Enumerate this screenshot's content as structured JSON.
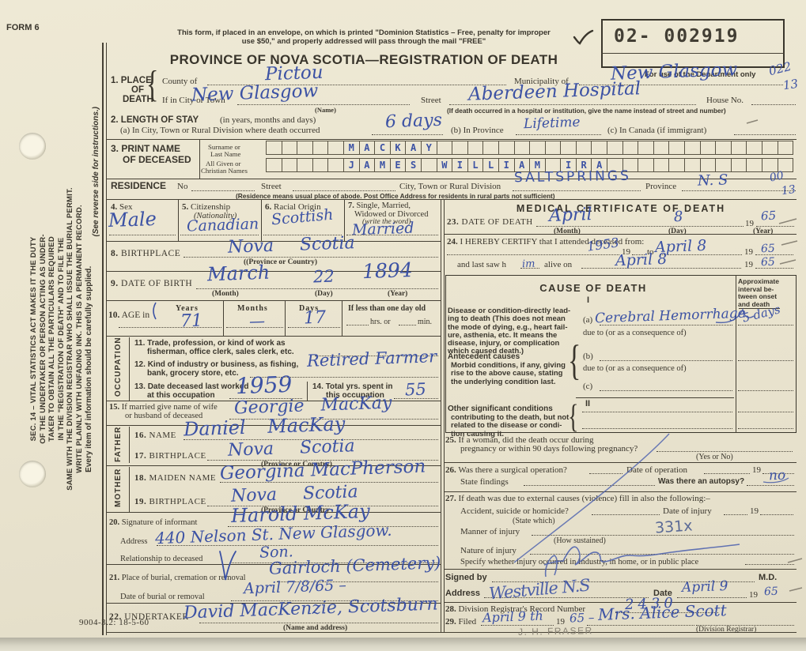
{
  "colors": {
    "ink": "#3c52a4",
    "print": "#39352c",
    "pencil": "#8b8577"
  },
  "glyphs": {
    "brace": "{",
    "check": "✓"
  },
  "chrome": {
    "form_code": "FORM 6",
    "print_code": "9004-3.2: 18-5-60"
  },
  "header": {
    "notice_line1": "This form, if placed in an envelope, on which is printed \"Dominion Statistics – Free, penalty for improper",
    "notice_line2": "use $50,\" and properly addressed will pass through the mail \"FREE\"",
    "title": "PROVINCE OF NOVA SCOTIA—REGISTRATION OF DEATH",
    "stamp_number": "02-  002919",
    "department_note": "For use of the Department only",
    "margin_code_1": "022",
    "margin_code_2": "13"
  },
  "sidebar": {
    "duty_lines": [
      "SEC. 14 – VITAL STATISTICS ACT MAKES IT THE DUTY",
      "OF THE UNDERTAKER OR PERSON ACTING AS UNDER-",
      "TAKER TO OBTAIN ALL THE PARTICULARS REQUIRED",
      "IN THE \"REGISTRATION OF DEATH\" AND TO FILE THE",
      "SAME WITH THE DIVISION REGISTRAR WHO SHALL ISSUE THE BURIAL PERMIT.",
      "WRITE PLAINLY WITH UNFADING INK. THIS IS A PERMANENT RECORD."
    ],
    "reverse_note": "(See reverse side for instructions.)",
    "supply_note": "Every item of information should be carefully supplied."
  },
  "s1": {
    "num": "1.",
    "label1": "PLACE",
    "label2": "OF",
    "label3": "DEATH",
    "county_label": "County of",
    "county": "Pictou",
    "municipality_label": "Municipality of",
    "municipality": "New Glasgow",
    "city_label": "If in City or Town",
    "city": "New Glasgow",
    "name_note": "(Name)",
    "street_label": "Street",
    "street": "Aberdeen Hospital",
    "house_label": "House No.",
    "hospital_note": "(If death occurred in a hospital or institution, give the name instead of street and number)"
  },
  "s2": {
    "num": "2.",
    "label": "LENGTH OF STAY",
    "paren": "(in years, months and days)",
    "a_label": "(a) In City, Town or Rural Division where death occurred",
    "a_value": "6 days",
    "b_label": "(b) In Province",
    "b_value": "Lifetime",
    "c_label": "(c) In Canada (if immigrant)"
  },
  "s3": {
    "num": "3.",
    "label1": "PRINT NAME",
    "label2": "OF DECEASED",
    "surname_label1": "Surname or",
    "surname_label2": "Last Name",
    "given_label1": "All Given or",
    "given_label2": "Christian Names",
    "grid": {
      "rows": [
        {
          "cells": 34,
          "start": 5,
          "letters": "MACKAY"
        },
        {
          "cells": 34,
          "start": 5,
          "letters": "JAMES WILLIAM IRA"
        }
      ]
    }
  },
  "residence": {
    "label": "RESIDENCE",
    "no_label": "No",
    "street_label": "Street",
    "city_label": "City, Town or Rural Division",
    "city_value": "SALTSPRINGS",
    "prov_label": "Province",
    "prov_value": "N. S",
    "note": "(Residence means usual place of abode. Post Office Address for residents in rural parts not sufficient)",
    "code_1": "00",
    "code_2": "13"
  },
  "s4": {
    "num": "4.",
    "label": "Sex",
    "value": "Male"
  },
  "s5": {
    "num": "5.",
    "label": "Citizenship",
    "paren": "(Nationality)",
    "value": "Canadian"
  },
  "s6": {
    "num": "6.",
    "label": "Racial Origin",
    "value": "Scottish"
  },
  "s7": {
    "num": "7.",
    "label1": "Single, Married,",
    "label2": "Widowed or Divorced",
    "paren": "(write the word)",
    "value": "Married"
  },
  "s8": {
    "num": "8.",
    "label": "BIRTHPLACE",
    "value": "Nova Scotia",
    "note": "((Province or Country)"
  },
  "s9": {
    "num": "9.",
    "label": "DATE OF BIRTH",
    "month": "March",
    "day": "22",
    "year": "1894",
    "month_note": "(Month)",
    "day_note": "(Day)",
    "year_note": "(Year)"
  },
  "s10": {
    "num": "10.",
    "label": "AGE in",
    "years_label": "Years",
    "months_label": "Months",
    "days_label": "Days",
    "years": "71",
    "months": "—",
    "days": "17",
    "less_label": "If less than one day old",
    "hrs_label": "hrs. or",
    "min_label": "min."
  },
  "occupation_label": "OCCUPATION",
  "father_label": "FATHER",
  "mother_label": "MOTHER",
  "s11": {
    "num": "11.",
    "line1": "Trade, profession, or kind of work as",
    "line2": "fisherman, office clerk, sales clerk, etc."
  },
  "s12": {
    "num": "12.",
    "line1": "Kind of industry or business, as fishing,",
    "line2": "bank, grocery store, etc.",
    "value": "Retired Farmer"
  },
  "s13": {
    "num": "13.",
    "line1": "Date deceased last worked",
    "line2": "at this occupation",
    "value": "1959"
  },
  "s14": {
    "num": "14.",
    "line1": "Total yrs. spent in",
    "line2": "this occupation",
    "value": "55"
  },
  "s15": {
    "num": "15.",
    "line1": "If married give name of wife",
    "line2": "or husband of deceased",
    "value": "Georgie MacKay"
  },
  "s16": {
    "num": "16.",
    "label": "NAME",
    "value": "Daniel MacKay"
  },
  "s17": {
    "num": "17.",
    "label": "BIRTHPLACE",
    "value": "Nova Scotia",
    "note": "(Province or Country)"
  },
  "s18": {
    "num": "18.",
    "label": "MAIDEN NAME",
    "value": "Georgina MacPherson"
  },
  "s19": {
    "num": "19.",
    "label": "BIRTHPLACE",
    "value": "Nova Scotia",
    "note": "(Province or Country"
  },
  "s20": {
    "num": "20.",
    "label": "Signature of informant",
    "value": "Harold McKay",
    "address_label": "Address",
    "address": "440 Nelson St. New Glasgow.",
    "rel_label": "Relationship to deceased",
    "rel": "Son."
  },
  "s21": {
    "num": "21.",
    "label": "Place of burial, cremation or removal",
    "value": "Gairloch (Cemetery)",
    "date_label": "Date of burial or removal",
    "date": "April 7/8/65 –"
  },
  "s22": {
    "num": "22.",
    "label": "UNDERTAKER",
    "value": "David MacKenzie, Scotsburn",
    "note": "(Name and address)"
  },
  "med": {
    "title": "MEDICAL CERTIFICATE OF DEATH"
  },
  "s23": {
    "num": "23.",
    "label": "DATE OF DEATH",
    "month": "April",
    "day": "8",
    "nineteen": "19",
    "year": "65",
    "month_note": "(Month)",
    "day_note": "(Day)",
    "year_note": "(Year)"
  },
  "s24": {
    "num": "24.",
    "label": "I HEREBY CERTIFY that I attended deceased from:",
    "from": "1953",
    "nineteen1": "19",
    "to_label": "to",
    "to_value": "April 8",
    "nineteen2": "19",
    "to_year": "65",
    "saw_label": "and last saw h",
    "saw_fill": "im",
    "alive_label": "alive on",
    "alive_value": "April 8",
    "nineteen3": "19",
    "alive_year": "65"
  },
  "cause": {
    "title": "CAUSE OF DEATH",
    "roman1": "I",
    "roman2": "II",
    "interval_lines": [
      "Approximate",
      "interval be-",
      "tween onset",
      "and death"
    ],
    "lead_lines": [
      "Disease or condition-directly lead-",
      "ing to death (This does not mean",
      "the mode of dying, e.g., heart fail-",
      "ure, asthenia, etc. It means the",
      "disease, injury, or complication",
      "which caused death.)"
    ],
    "a_label": "(a)",
    "a_value": "Cerebral Hemorrhage",
    "due1": "due to (or as a consequence of)",
    "interval_a": "5 days",
    "ante_lines": [
      "Antecedent causes",
      "Morbid conditions, if any, giving",
      "rise to the above cause, stating",
      "the underlying condition last."
    ],
    "b_label": "(b)",
    "due2": "due to (or as a consequence of)",
    "c_label": "(c)",
    "other_lines": [
      "Other significant conditions",
      "contributing to the death, but not",
      "related to the disease or condi-",
      "tion causing it."
    ]
  },
  "s25": {
    "num": "25.",
    "line1": "If a woman, did the death occur during",
    "line2": "pregnancy or within 90 days following pregnancy?",
    "note": "(Yes or No)"
  },
  "s26": {
    "num": "26.",
    "label": "Was there a surgical operation?",
    "date_label": "Date of operation",
    "nineteen": "19",
    "findings_label": "State findings",
    "autopsy_label": "Was there an autopsy?",
    "autopsy": "no"
  },
  "s27": {
    "num": "27.",
    "label": "If death was due to external causes (violence) fill in also the following:–",
    "accident_label": "Accident, suicide or homicide?",
    "state_note": "(State which)",
    "injury_date_label": "Date of injury",
    "nineteen": "19",
    "manner_label": "Manner of injury",
    "sustained_note": "(How sustained)",
    "code": "331x",
    "nature_label": "Nature of injury",
    "specify_label": "Specify whether injury occurred in Industry, in home, or in public place"
  },
  "signed": {
    "label": "Signed by",
    "md": "M.D.",
    "address_label": "Address",
    "address": "Westville N.S",
    "date_label": "Date",
    "date": "April 9",
    "nineteen": "19",
    "year": "65"
  },
  "s28": {
    "num": "28.",
    "label": "Division Registrar's Record Number",
    "value": "2430"
  },
  "s29": {
    "num": "29.",
    "label": "Filed",
    "date": "April 9 th",
    "nineteen": "19",
    "year": "65 –",
    "registrar": "Mrs. Alice Scott",
    "note": "(Division Registrar)",
    "pencil": "J. H. FRASER"
  }
}
